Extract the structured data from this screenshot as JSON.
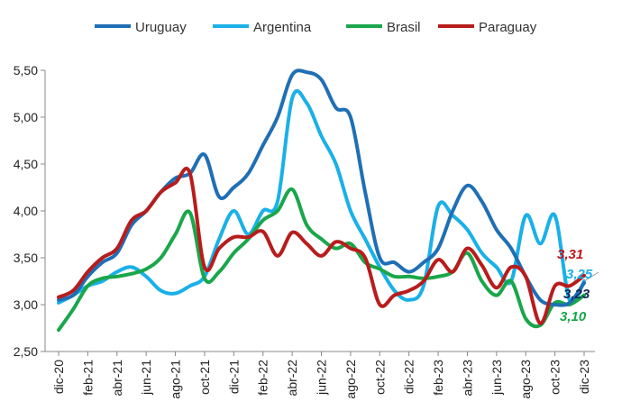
{
  "chart_data": {
    "type": "line",
    "title": "",
    "xlabel": "",
    "ylabel": "",
    "ylim": [
      2.5,
      5.5
    ],
    "yticks": [
      "2,50",
      "3,00",
      "3,50",
      "4,00",
      "4,50",
      "5,00",
      "5,50"
    ],
    "grid": false,
    "legend_position": "top",
    "x_tick_labels": [
      "dic-20",
      "feb-21",
      "abr-21",
      "jun-21",
      "ago-21",
      "oct-21",
      "dic-21",
      "feb-22",
      "abr-22",
      "jun-22",
      "ago-22",
      "oct-22",
      "dic-22",
      "feb-23",
      "abr-23",
      "jun-23",
      "ago-23",
      "oct-23",
      "dic-23"
    ],
    "x_months": [
      "dic-20",
      "ene-21",
      "feb-21",
      "mar-21",
      "abr-21",
      "may-21",
      "jun-21",
      "jul-21",
      "ago-21",
      "sep-21",
      "oct-21",
      "nov-21",
      "dic-21",
      "ene-22",
      "feb-22",
      "mar-22",
      "abr-22",
      "may-22",
      "jun-22",
      "jul-22",
      "ago-22",
      "sep-22",
      "oct-22",
      "nov-22",
      "dic-22",
      "ene-23",
      "feb-23",
      "mar-23",
      "abr-23",
      "may-23",
      "jun-23",
      "jul-23",
      "ago-23",
      "sep-23",
      "oct-23",
      "nov-23",
      "dic-23"
    ],
    "series": [
      {
        "name": "Uruguay",
        "color": "#1f6fb5",
        "values": [
          3.05,
          3.1,
          3.3,
          3.45,
          3.55,
          3.85,
          4.0,
          4.2,
          4.35,
          4.4,
          4.6,
          4.15,
          4.25,
          4.4,
          4.7,
          5.0,
          5.45,
          5.48,
          5.4,
          5.1,
          5.0,
          4.2,
          3.5,
          3.45,
          3.35,
          3.45,
          3.6,
          4.0,
          4.27,
          4.1,
          3.8,
          3.6,
          3.3,
          3.05,
          3.0,
          3.02,
          3.23
        ]
      },
      {
        "name": "Argentina",
        "color": "#1ab0e8",
        "values": [
          3.02,
          3.1,
          3.2,
          3.25,
          3.35,
          3.4,
          3.3,
          3.15,
          3.12,
          3.2,
          3.3,
          3.7,
          4.0,
          3.75,
          4.0,
          4.1,
          5.2,
          5.15,
          4.8,
          4.5,
          4.0,
          3.7,
          3.4,
          3.15,
          3.05,
          3.2,
          4.05,
          3.95,
          3.8,
          3.55,
          3.4,
          3.25,
          3.95,
          3.65,
          3.95,
          3.05,
          3.25
        ]
      },
      {
        "name": "Brasil",
        "color": "#1aa64a",
        "values": [
          2.73,
          2.95,
          3.2,
          3.28,
          3.3,
          3.33,
          3.38,
          3.5,
          3.75,
          3.98,
          3.28,
          3.35,
          3.55,
          3.7,
          3.9,
          4.0,
          4.23,
          3.85,
          3.7,
          3.6,
          3.65,
          3.45,
          3.38,
          3.3,
          3.3,
          3.28,
          3.3,
          3.35,
          3.55,
          3.25,
          3.1,
          3.25,
          2.85,
          2.78,
          3.02,
          3.0,
          3.1
        ]
      },
      {
        "name": "Paraguay",
        "color": "#b81c1c",
        "values": [
          3.08,
          3.15,
          3.35,
          3.5,
          3.6,
          3.9,
          4.0,
          4.2,
          4.3,
          4.4,
          3.4,
          3.6,
          3.72,
          3.72,
          3.78,
          3.52,
          3.77,
          3.65,
          3.52,
          3.67,
          3.6,
          3.5,
          3.0,
          3.1,
          3.15,
          3.25,
          3.48,
          3.35,
          3.6,
          3.42,
          3.18,
          3.4,
          3.3,
          2.8,
          3.2,
          3.2,
          3.31
        ]
      }
    ],
    "end_labels": [
      {
        "series": "Paraguay",
        "text": "3,31",
        "color": "#c0161b"
      },
      {
        "series": "Argentina",
        "text": "3,25",
        "color": "#1ab0e8"
      },
      {
        "series": "Uruguay",
        "text": "3,23",
        "color": "#10285a"
      },
      {
        "series": "Brasil",
        "text": "3,10",
        "color": "#1aa64a"
      }
    ]
  }
}
